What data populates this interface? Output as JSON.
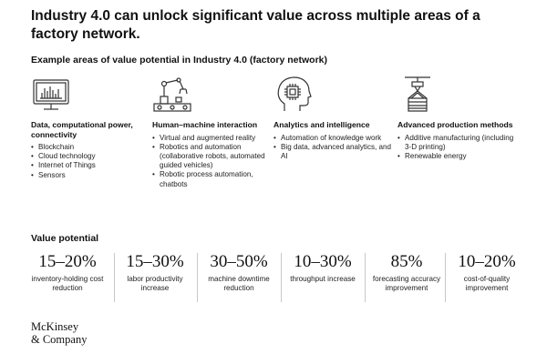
{
  "title": "Industry 4.0 can unlock significant value across multiple areas of a factory network.",
  "subtitle": "Example areas of value potential in Industry 4.0 (factory network)",
  "areas": [
    {
      "icon": "monitor-chart-icon",
      "heading": "Data, computational power, connectivity",
      "items": [
        "Blockchain",
        "Cloud technology",
        "Internet of Things",
        "Sensors"
      ]
    },
    {
      "icon": "robot-arm-icon",
      "heading": "Human–machine interaction",
      "items": [
        "Virtual and augmented reality",
        "Robotics and automation (collaborative robots, automated guided vehicles)",
        "Robotic process automation, chatbots"
      ]
    },
    {
      "icon": "head-chip-icon",
      "heading": "Analytics and intelligence",
      "items": [
        "Automation of knowledge work",
        "Big data, advanced analytics, and AI"
      ]
    },
    {
      "icon": "3d-printer-icon",
      "heading": "Advanced production methods",
      "items": [
        "Additive manufacturing (including 3-D printing)",
        "Renewable energy"
      ]
    }
  ],
  "value_potential_label": "Value potential",
  "metrics": [
    {
      "value": "15–20%",
      "desc": "inventory-holding cost reduction"
    },
    {
      "value": "15–30%",
      "desc": "labor productivity increase"
    },
    {
      "value": "30–50%",
      "desc": "machine downtime reduction"
    },
    {
      "value": "10–30%",
      "desc": "throughput increase"
    },
    {
      "value": "85%",
      "desc": "forecasting accuracy improvement"
    },
    {
      "value": "10–20%",
      "desc": "cost-of-quality improvement"
    }
  ],
  "logo": {
    "line1": "McKinsey",
    "line2": "& Company"
  }
}
